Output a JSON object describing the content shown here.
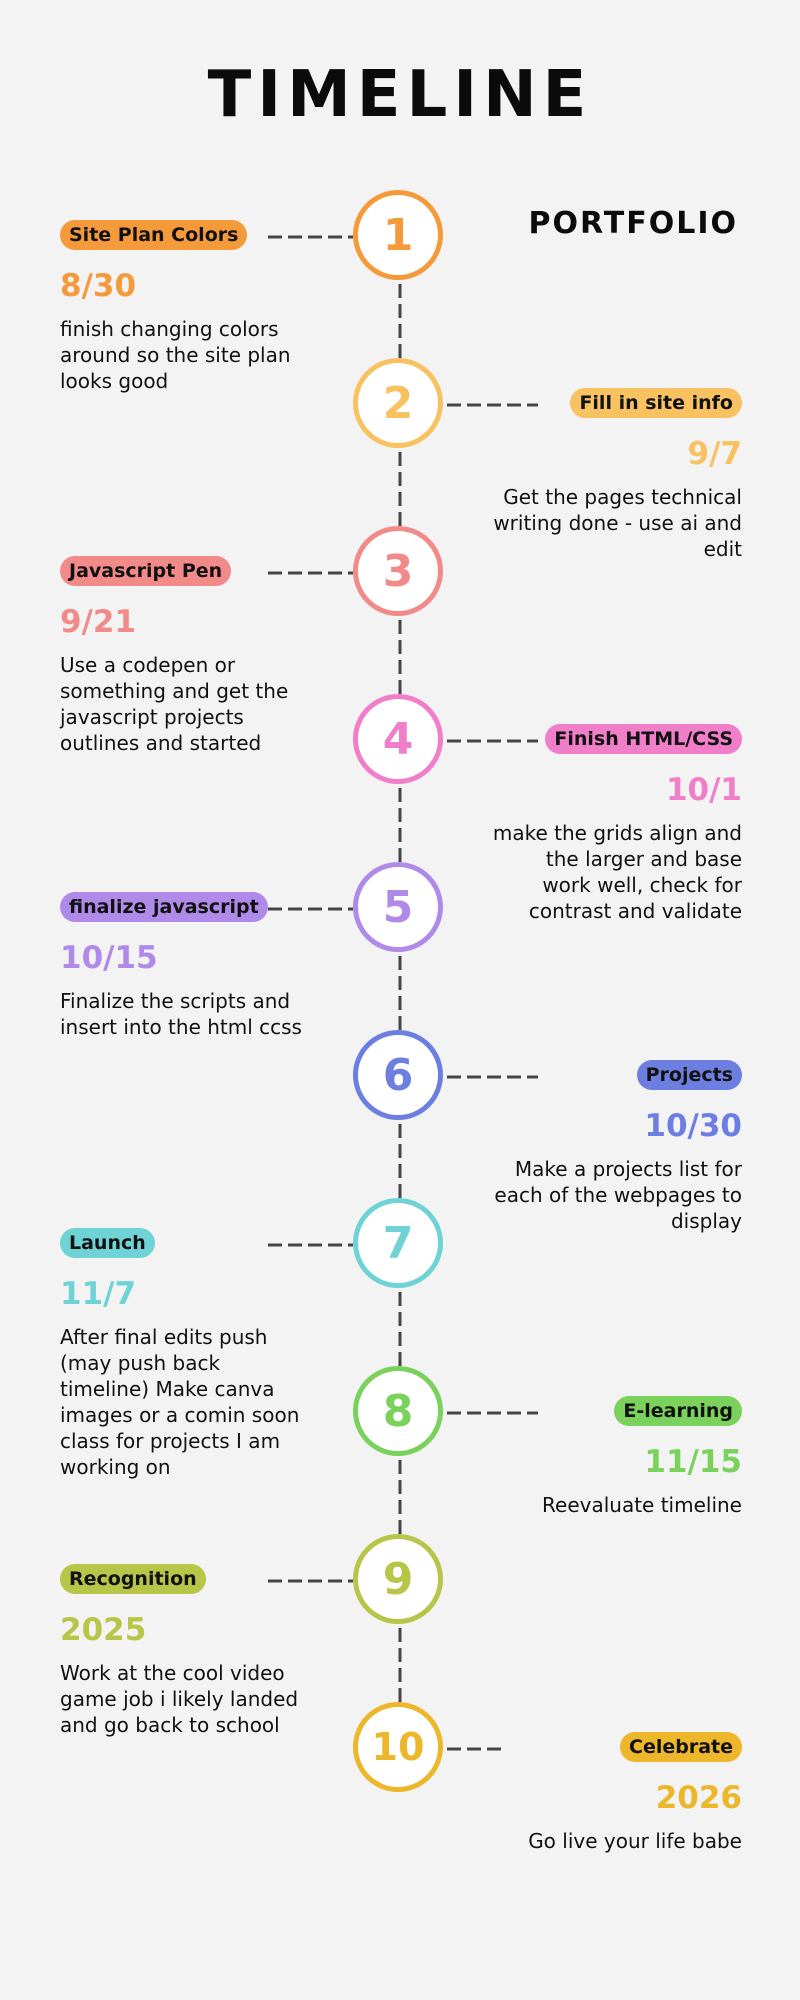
{
  "title": "TIMELINE",
  "subtitle": "PORTFOLIO",
  "items": [
    {
      "number": "1",
      "label": "Site Plan Colors",
      "date": "8/30",
      "description": "finish changing colors around so the site plan looks good",
      "color": "#f59a3b",
      "side": "left"
    },
    {
      "number": "2",
      "label": "Fill in site info",
      "date": "9/7",
      "description": "Get the pages technical writing done - use ai and edit",
      "color": "#f8c261",
      "side": "right"
    },
    {
      "number": "3",
      "label": "Javascript Pen",
      "date": "9/21",
      "description": "Use a codepen or something and get the javascript projects outlines and started",
      "color": "#f28a8a",
      "side": "left"
    },
    {
      "number": "4",
      "label": "Finish  HTML/CSS",
      "date": "10/1",
      "description": "make the grids align and the larger and base work well, check for contrast and validate",
      "color": "#f07ec9",
      "side": "right"
    },
    {
      "number": "5",
      "label": "finalize javascript",
      "date": "10/15",
      "description": "Finalize the scripts and insert into the html ccss",
      "color": "#b08ae9",
      "side": "left"
    },
    {
      "number": "6",
      "label": "Projects",
      "date": "10/30",
      "description": "Make a projects list for each of the webpages to display",
      "color": "#6c7fe0",
      "side": "right"
    },
    {
      "number": "7",
      "label": "Launch",
      "date": "11/7",
      "description": "After final edits push (may push back timeline) Make canva images or a comin soon class for projects I am working on",
      "color": "#6fd3d6",
      "side": "left"
    },
    {
      "number": "8",
      "label": "E-learning",
      "date": "11/15",
      "description": "Reevaluate timeline",
      "color": "#7ad15c",
      "side": "right"
    },
    {
      "number": "9",
      "label": "Recognition",
      "date": "2025",
      "description": "Work at the cool video game job i likely landed and go back to school",
      "color": "#b7c548",
      "side": "left"
    },
    {
      "number": "10",
      "label": "Celebrate",
      "date": "2026",
      "description": "Go live your life babe",
      "color": "#edb72c",
      "side": "right"
    }
  ]
}
